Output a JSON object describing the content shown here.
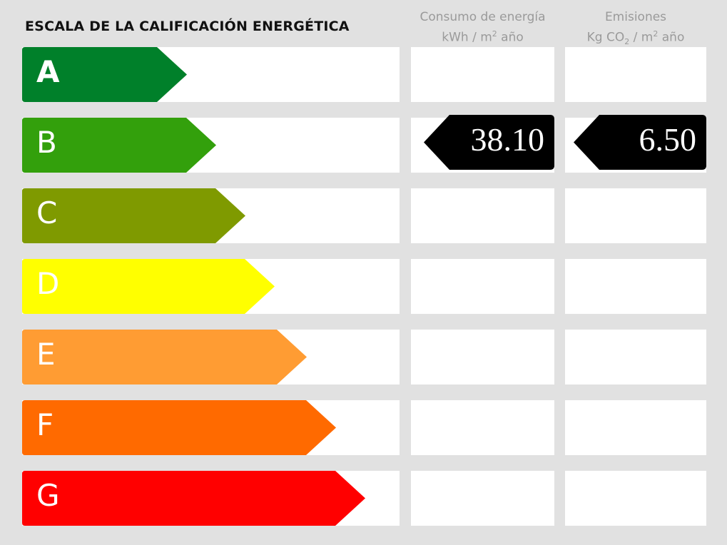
{
  "title": "ESCALA DE LA CALIFICACIÓN ENERGÉTICA",
  "columns": {
    "energy": {
      "line1": "Consumo de energía",
      "line2_pre": "kWh / m",
      "line2_sup": "2",
      "line2_post": " año"
    },
    "emissions": {
      "line1": "Emisiones",
      "line2_pre": "Kg CO",
      "line2_sub": "2",
      "line2_mid": " / m",
      "line2_sup": "2",
      "line2_post": " año"
    }
  },
  "ratings": [
    {
      "letter": "A",
      "color": "#00802a"
    },
    {
      "letter": "B",
      "color": "#33a00c"
    },
    {
      "letter": "C",
      "color": "#7f9a00"
    },
    {
      "letter": "D",
      "color": "#ffff00"
    },
    {
      "letter": "E",
      "color": "#ff9c33"
    },
    {
      "letter": "F",
      "color": "#ff6a00"
    },
    {
      "letter": "G",
      "color": "#ff0000"
    }
  ],
  "current_rating": "B",
  "energy_value": "38.10",
  "emissions_value": "6.50",
  "tag_color": "#000000"
}
